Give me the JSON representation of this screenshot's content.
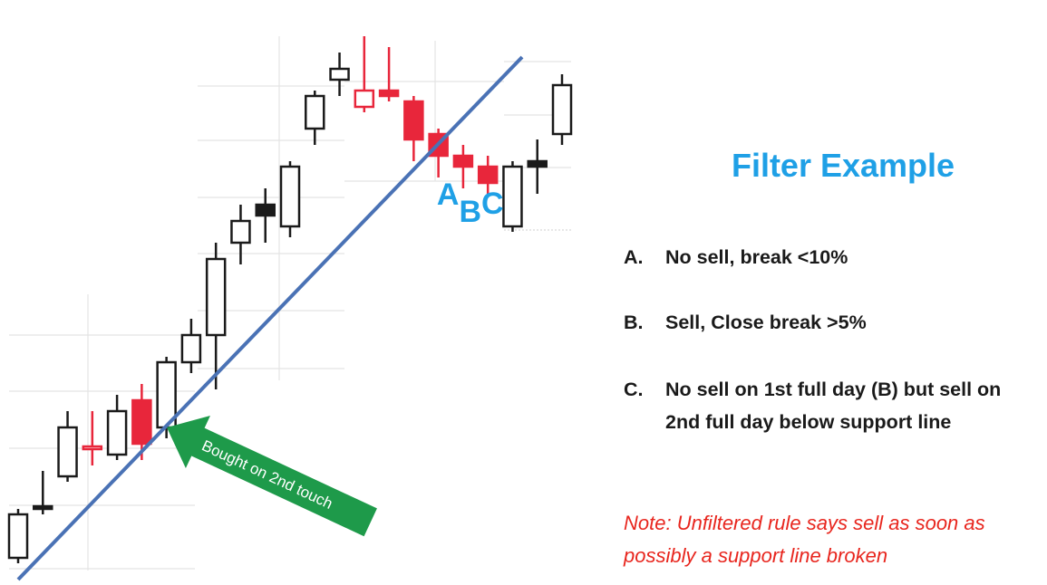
{
  "chart_data": {
    "type": "candlestick",
    "y_axis": {
      "direction": "price",
      "ylim": [
        0,
        100
      ]
    },
    "candles": [
      {
        "index": 1,
        "open": 4,
        "close": 12,
        "high": 13,
        "low": 3,
        "color": "#ffffff",
        "border": "#1a1a1a"
      },
      {
        "index": 2,
        "open": 13,
        "close": 13.5,
        "high": 20,
        "low": 12,
        "color": "#1a1a1a",
        "border": "#1a1a1a"
      },
      {
        "index": 3,
        "open": 19,
        "close": 28,
        "high": 31,
        "low": 18,
        "color": "#ffffff",
        "border": "#1a1a1a"
      },
      {
        "index": 4,
        "open": 24,
        "close": 24.5,
        "high": 31,
        "low": 21,
        "color": "#ffffff",
        "border": "#e8263b"
      },
      {
        "index": 5,
        "open": 23,
        "close": 31,
        "high": 34,
        "low": 22,
        "color": "#ffffff",
        "border": "#1a1a1a"
      },
      {
        "index": 6,
        "open": 33,
        "close": 25,
        "high": 36,
        "low": 22,
        "color": "#e8263b",
        "border": "#e8263b"
      },
      {
        "index": 7,
        "open": 28,
        "close": 40,
        "high": 41,
        "low": 26,
        "color": "#ffffff",
        "border": "#1a1a1a"
      },
      {
        "index": 8,
        "open": 40,
        "close": 45,
        "high": 48,
        "low": 38,
        "color": "#ffffff",
        "border": "#1a1a1a"
      },
      {
        "index": 9,
        "open": 45,
        "close": 59,
        "high": 62,
        "low": 35,
        "color": "#ffffff",
        "border": "#1a1a1a"
      },
      {
        "index": 10,
        "open": 62,
        "close": 66,
        "high": 69,
        "low": 58,
        "color": "#ffffff",
        "border": "#1a1a1a"
      },
      {
        "index": 11,
        "open": 69,
        "close": 67,
        "high": 72,
        "low": 62,
        "color": "#1a1a1a",
        "border": "#1a1a1a"
      },
      {
        "index": 12,
        "open": 65,
        "close": 76,
        "high": 77,
        "low": 63,
        "color": "#ffffff",
        "border": "#1a1a1a"
      },
      {
        "index": 13,
        "open": 83,
        "close": 89,
        "high": 90,
        "low": 80,
        "color": "#ffffff",
        "border": "#1a1a1a"
      },
      {
        "index": 14,
        "open": 92,
        "close": 94,
        "high": 97,
        "low": 89,
        "color": "#ffffff",
        "border": "#1a1a1a"
      },
      {
        "index": 15,
        "open": 90,
        "close": 87,
        "high": 100,
        "low": 86,
        "color": "#ffffff",
        "border": "#e8263b"
      },
      {
        "index": 16,
        "open": 90,
        "close": 89,
        "high": 98,
        "low": 88,
        "color": "#e8263b",
        "border": "#e8263b"
      },
      {
        "index": 17,
        "open": 88,
        "close": 81,
        "high": 89,
        "low": 77,
        "color": "#e8263b",
        "border": "#e8263b"
      },
      {
        "index": 18,
        "open": 82,
        "close": 78,
        "high": 83,
        "low": 74,
        "color": "#e8263b",
        "border": "#e8263b"
      },
      {
        "index": 19,
        "open": 78,
        "close": 76,
        "high": 80,
        "low": 72,
        "color": "#e8263b",
        "border": "#e8263b"
      },
      {
        "index": 20,
        "open": 76,
        "close": 73,
        "high": 78,
        "low": 71,
        "color": "#e8263b",
        "border": "#e8263b"
      },
      {
        "index": 21,
        "open": 65,
        "close": 76,
        "high": 77,
        "low": 64,
        "color": "#ffffff",
        "border": "#1a1a1a"
      },
      {
        "index": 22,
        "open": 76,
        "close": 77,
        "high": 81,
        "low": 71,
        "color": "#1a1a1a",
        "border": "#1a1a1a"
      },
      {
        "index": 23,
        "open": 82,
        "close": 91,
        "high": 93,
        "low": 80,
        "color": "#ffffff",
        "border": "#1a1a1a"
      }
    ],
    "support_line": {
      "from": {
        "index": 1,
        "price": 0
      },
      "to": {
        "index": 23,
        "price": 97
      },
      "color": "#4a72b5"
    },
    "point_labels": [
      {
        "text": "A",
        "index": 19
      },
      {
        "text": "B",
        "index": 19.9
      },
      {
        "text": "C",
        "index": 20.8
      }
    ],
    "annotation_arrow": {
      "text": "Bought on 2nd touch",
      "color": "#1e9a4a",
      "points_to_index": 7
    }
  },
  "panel": {
    "title": "Filter Example",
    "items": [
      {
        "letter": "A.",
        "text": "No sell, break <10%"
      },
      {
        "letter": "B.",
        "text": "Sell, Close break >5%"
      },
      {
        "letter": "C.",
        "text": "No sell on 1st full day (B) but sell on 2nd full day below support line"
      }
    ],
    "note": "Note: Unfiltered rule says sell as soon as possibly a support line broken"
  }
}
